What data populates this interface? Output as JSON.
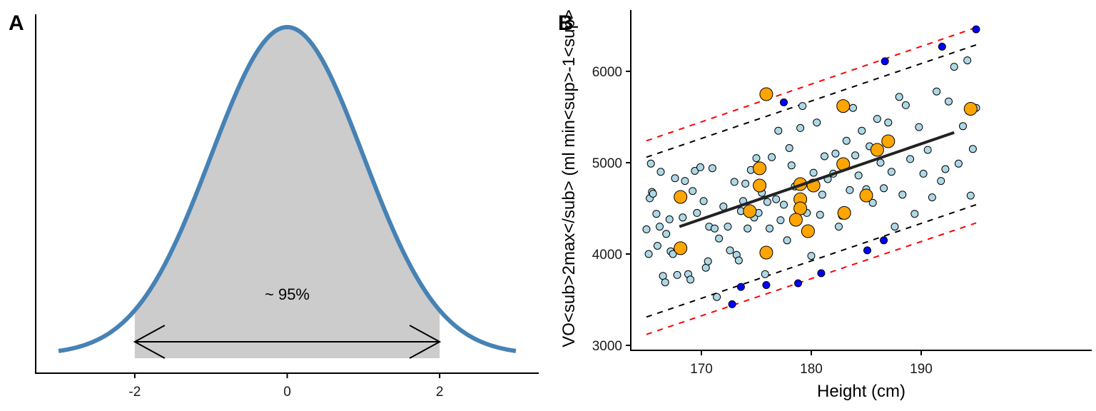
{
  "figure": {
    "panels": [
      "A",
      "B"
    ]
  },
  "chart_data": [
    {
      "panel": "A",
      "type": "area",
      "title": "",
      "description": "Standard normal density curve with central region between -2 and 2 shaded grey and a double-headed arrow labelled with the approximate coverage.",
      "xlabel": "",
      "ylabel": "",
      "xlim": [
        -3.3,
        3.3
      ],
      "x_ticks": [
        -2,
        0,
        2
      ],
      "x_tick_labels": [
        "-2",
        "0",
        "2"
      ],
      "curve": {
        "distribution": "normal",
        "mean": 0,
        "sd": 1,
        "x_range": [
          -3,
          3
        ],
        "color": "#4682B4"
      },
      "shaded_region": {
        "from": -2,
        "to": 2,
        "color": "#CCCCCC"
      },
      "arrow": {
        "from": -2,
        "to": 2,
        "heads": "both"
      },
      "annotation": "~ 95%",
      "grid": false
    },
    {
      "panel": "B",
      "type": "scatter",
      "title": "",
      "xlabel": "Height (cm)",
      "ylabel": "VO<sub>2max</sub> (ml min<sup>-1</sup>)",
      "ylabel_rendered": "VO<sub>2max</sub> (ml min<sup>-1<sup>",
      "xlim": [
        163.8,
        196
      ],
      "ylim": [
        2950,
        6700
      ],
      "x_ticks": [
        170,
        180,
        190
      ],
      "x_tick_labels": [
        "170",
        "180",
        "190"
      ],
      "y_ticks": [
        3000,
        4000,
        5000,
        6000
      ],
      "y_tick_labels": [
        "3000",
        "4000",
        "5000",
        "6000"
      ],
      "grid": false,
      "note": "x-axis tick pixel positions were not independently confirmed across zooms; point x-values are approximate (uncertainty of a few cm). y-values are more reliable.",
      "fit_line": {
        "x": [
          168,
          193
        ],
        "y": [
          4300,
          5330
        ],
        "color": "#222222",
        "style": "solid"
      },
      "prediction_band_inner": {
        "color": "#000000",
        "style": "dashed",
        "upper": {
          "x": [
            165,
            195
          ],
          "y": [
            5060,
            6290
          ]
        },
        "lower": {
          "x": [
            165,
            195
          ],
          "y": [
            3310,
            4540
          ]
        }
      },
      "prediction_band_outer": {
        "color": "#FF0000",
        "style": "dashed",
        "upper": {
          "x": [
            165,
            195
          ],
          "y": [
            5240,
            6480
          ]
        },
        "lower": {
          "x": [
            165,
            195
          ],
          "y": [
            3120,
            4340
          ]
        }
      },
      "series": [
        {
          "name": "sample",
          "color": "#ADD8E6",
          "size": "small",
          "points": [
            [
              165,
              4270
            ],
            [
              165.2,
              4000
            ],
            [
              165.3,
              4610
            ],
            [
              165.4,
              4990
            ],
            [
              165.5,
              4680
            ],
            [
              165.6,
              4660
            ],
            [
              165.9,
              4440
            ],
            [
              166,
              4090
            ],
            [
              166.2,
              4300
            ],
            [
              166.3,
              4900
            ],
            [
              166.5,
              3760
            ],
            [
              166.7,
              3690
            ],
            [
              166.8,
              4220
            ],
            [
              167.1,
              4380
            ],
            [
              167.2,
              4030
            ],
            [
              167.4,
              4000
            ],
            [
              167.6,
              4830
            ],
            [
              167.8,
              3770
            ],
            [
              168,
              4070
            ],
            [
              168.1,
              4610
            ],
            [
              168.3,
              4400
            ],
            [
              168.5,
              4800
            ],
            [
              168.8,
              3780
            ],
            [
              169,
              3720
            ],
            [
              169.2,
              4690
            ],
            [
              169.4,
              4910
            ],
            [
              169.6,
              4450
            ],
            [
              169.9,
              4950
            ],
            [
              170.2,
              4580
            ],
            [
              170.4,
              3850
            ],
            [
              170.6,
              3920
            ],
            [
              170.7,
              4300
            ],
            [
              171,
              4940
            ],
            [
              171.2,
              4280
            ],
            [
              171.4,
              3530
            ],
            [
              171.6,
              4170
            ],
            [
              172,
              4520
            ],
            [
              172.4,
              4300
            ],
            [
              172.6,
              4040
            ],
            [
              173,
              4790
            ],
            [
              173.2,
              3990
            ],
            [
              173.4,
              3930
            ],
            [
              173.6,
              4470
            ],
            [
              173.8,
              4580
            ],
            [
              174,
              4770
            ],
            [
              174.2,
              4280
            ],
            [
              174.5,
              4920
            ],
            [
              174.8,
              4400
            ],
            [
              175,
              5050
            ],
            [
              175.2,
              4450
            ],
            [
              175.5,
              4670
            ],
            [
              175.8,
              3780
            ],
            [
              176,
              4570
            ],
            [
              176.2,
              4280
            ],
            [
              176.4,
              5060
            ],
            [
              176.8,
              4600
            ],
            [
              177,
              5350
            ],
            [
              177.2,
              4370
            ],
            [
              177.5,
              4540
            ],
            [
              177.8,
              4150
            ],
            [
              178,
              5160
            ],
            [
              178.2,
              4970
            ],
            [
              178.5,
              4740
            ],
            [
              178.8,
              4480
            ],
            [
              179,
              5380
            ],
            [
              179.2,
              5620
            ],
            [
              179.6,
              4450
            ],
            [
              180,
              3980
            ],
            [
              180.2,
              4890
            ],
            [
              180.5,
              5440
            ],
            [
              180.8,
              4430
            ],
            [
              181,
              4650
            ],
            [
              181.2,
              5070
            ],
            [
              181.5,
              4820
            ],
            [
              182,
              4880
            ],
            [
              182.2,
              5100
            ],
            [
              182.5,
              4300
            ],
            [
              182.8,
              4420
            ],
            [
              183,
              4970
            ],
            [
              183.2,
              5240
            ],
            [
              183.5,
              4700
            ],
            [
              183.8,
              5600
            ],
            [
              184,
              5080
            ],
            [
              184.3,
              4860
            ],
            [
              184.6,
              5350
            ],
            [
              185,
              4710
            ],
            [
              185.3,
              5180
            ],
            [
              185.6,
              4560
            ],
            [
              186,
              5480
            ],
            [
              186.3,
              5000
            ],
            [
              186.6,
              4720
            ],
            [
              187,
              5440
            ],
            [
              187.3,
              4900
            ],
            [
              187.6,
              4300
            ],
            [
              188,
              5720
            ],
            [
              188.3,
              4650
            ],
            [
              188.6,
              5630
            ],
            [
              189,
              5040
            ],
            [
              189.4,
              4440
            ],
            [
              189.8,
              5390
            ],
            [
              190.2,
              4880
            ],
            [
              190.6,
              5140
            ],
            [
              191,
              4620
            ],
            [
              191.4,
              5780
            ],
            [
              191.8,
              4800
            ],
            [
              192.2,
              4930
            ],
            [
              192.5,
              5670
            ],
            [
              193,
              6050
            ],
            [
              193.4,
              4990
            ],
            [
              193.8,
              5400
            ],
            [
              194.2,
              6120
            ],
            [
              194.5,
              4640
            ],
            [
              194.7,
              5150
            ],
            [
              195,
              5600
            ]
          ]
        },
        {
          "name": "highlighted",
          "color": "#FFA500",
          "size": "large",
          "points": [
            [
              168.1,
              4625
            ],
            [
              168.1,
              4063
            ],
            [
              175.9,
              5750
            ],
            [
              175.3,
              4938
            ],
            [
              175.3,
              4750
            ],
            [
              174.4,
              4469
            ],
            [
              175.9,
              4016
            ],
            [
              179,
              4766
            ],
            [
              179,
              4600
            ],
            [
              179,
              4500
            ],
            [
              178.6,
              4375
            ],
            [
              179.7,
              4250
            ],
            [
              180.2,
              4750
            ],
            [
              182.9,
              5620
            ],
            [
              182.9,
              4984
            ],
            [
              183,
              4450
            ],
            [
              185,
              4641
            ],
            [
              186,
              5141
            ],
            [
              187,
              5234
            ],
            [
              194.5,
              5590
            ]
          ]
        },
        {
          "name": "outliers",
          "color": "#0000FF",
          "size": "small",
          "points": [
            [
              172.8,
              3450
            ],
            [
              173.6,
              3640
            ],
            [
              175.9,
              3660
            ],
            [
              177.5,
              5660
            ],
            [
              178.8,
              3680
            ],
            [
              180.9,
              3790
            ],
            [
              185.1,
              4040
            ],
            [
              186.6,
              4150
            ],
            [
              186.7,
              6110
            ],
            [
              191.9,
              6270
            ],
            [
              195,
              6460
            ]
          ]
        }
      ]
    }
  ]
}
